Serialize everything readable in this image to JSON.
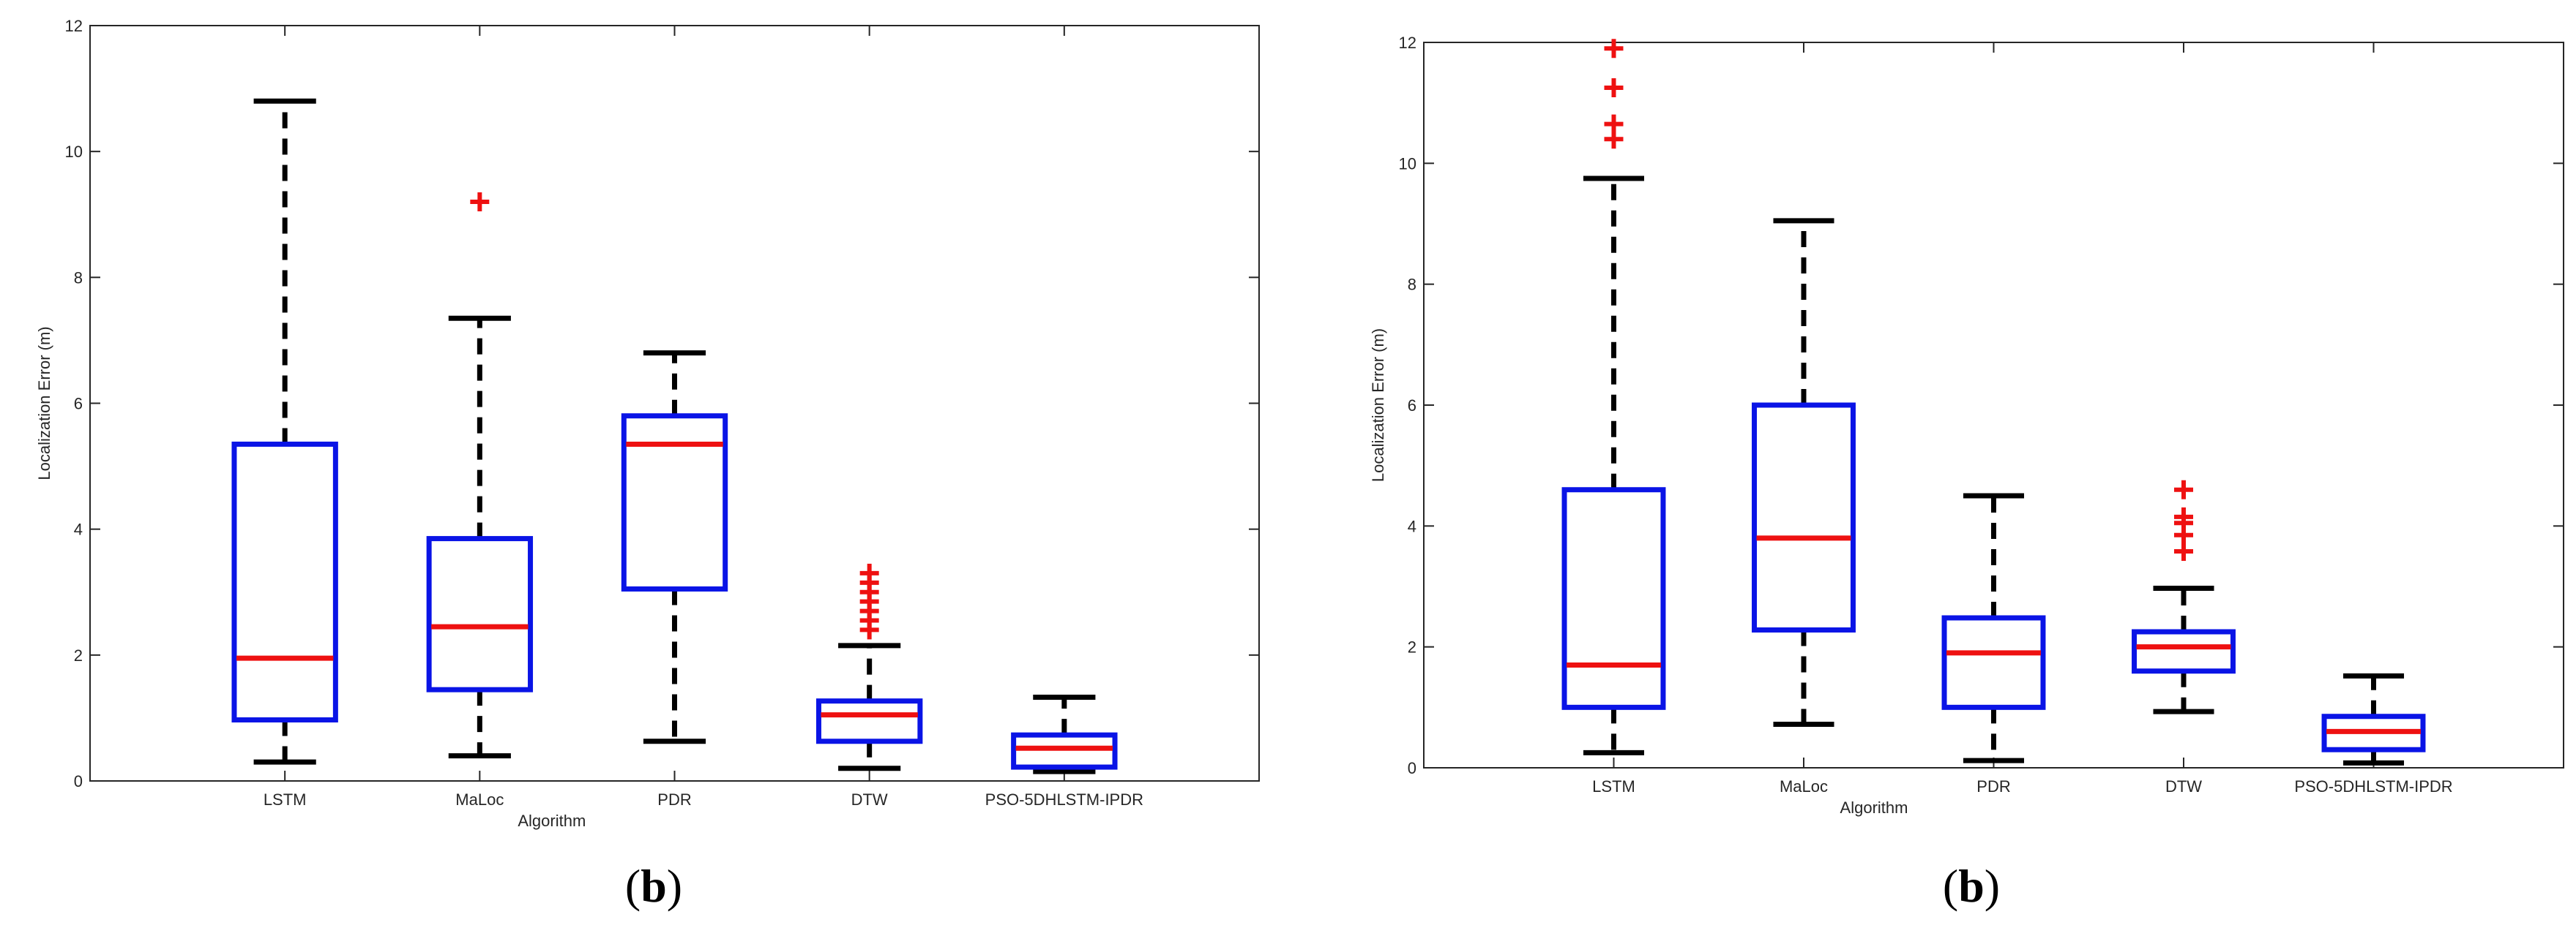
{
  "chart_data": [
    {
      "type": "boxplot",
      "panel_label": "b",
      "xlabel": "Algorithm",
      "ylabel": "Localization Error (m)",
      "ylim": [
        0,
        12
      ],
      "yticks": [
        0,
        2,
        4,
        6,
        8,
        10,
        12
      ],
      "categories": [
        "LSTM",
        "MaLoc",
        "PDR",
        "DTW",
        "PSO-5DHLSTM-IPDR"
      ],
      "boxes": [
        {
          "whisker_low": 0.3,
          "q1": 0.97,
          "median": 1.95,
          "q3": 5.35,
          "whisker_high": 10.8,
          "outliers": []
        },
        {
          "whisker_low": 0.4,
          "q1": 1.45,
          "median": 2.45,
          "q3": 3.85,
          "whisker_high": 7.35,
          "outliers": [
            9.2
          ]
        },
        {
          "whisker_low": 0.63,
          "q1": 3.05,
          "median": 5.35,
          "q3": 5.8,
          "whisker_high": 6.8,
          "outliers": []
        },
        {
          "whisker_low": 0.2,
          "q1": 0.63,
          "median": 1.05,
          "q3": 1.27,
          "whisker_high": 2.15,
          "outliers": [
            2.4,
            2.55,
            2.7,
            2.85,
            3.0,
            3.15,
            3.3
          ]
        },
        {
          "whisker_low": 0.15,
          "q1": 0.22,
          "median": 0.52,
          "q3": 0.73,
          "whisker_high": 1.33,
          "outliers": []
        }
      ]
    },
    {
      "type": "boxplot",
      "panel_label": "b",
      "xlabel": "Algorithm",
      "ylabel": "Localization Error (m)",
      "ylim": [
        0,
        12
      ],
      "yticks": [
        0,
        2,
        4,
        6,
        8,
        10,
        12
      ],
      "categories": [
        "LSTM",
        "MaLoc",
        "PDR",
        "DTW",
        "PSO-5DHLSTM-IPDR"
      ],
      "boxes": [
        {
          "whisker_low": 0.25,
          "q1": 1.0,
          "median": 1.7,
          "q3": 4.6,
          "whisker_high": 9.75,
          "outliers": [
            10.4,
            10.65,
            11.25,
            11.9
          ]
        },
        {
          "whisker_low": 0.72,
          "q1": 2.28,
          "median": 3.8,
          "q3": 6.0,
          "whisker_high": 9.05,
          "outliers": []
        },
        {
          "whisker_low": 0.12,
          "q1": 1.0,
          "median": 1.9,
          "q3": 2.48,
          "whisker_high": 4.5,
          "outliers": []
        },
        {
          "whisker_low": 0.93,
          "q1": 1.6,
          "median": 2.0,
          "q3": 2.25,
          "whisker_high": 2.97,
          "outliers": [
            3.58,
            3.85,
            4.05,
            4.15,
            4.6
          ]
        },
        {
          "whisker_low": 0.08,
          "q1": 0.3,
          "median": 0.6,
          "q3": 0.85,
          "whisker_high": 1.52,
          "outliers": []
        }
      ]
    }
  ],
  "colors": {
    "box": "#0a14e6",
    "median": "#ee1111",
    "whisker": "#000000",
    "outlier": "#ee1111",
    "axis": "#262626"
  }
}
